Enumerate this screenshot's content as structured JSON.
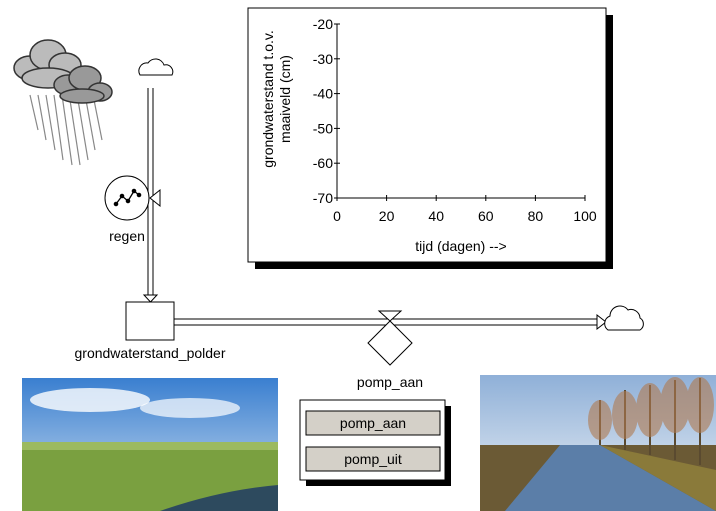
{
  "graph": {
    "type": "line",
    "y_label": [
      "grondwaterstand t.o.v.",
      "maaiveld (cm)"
    ],
    "x_label": "tijd (dagen) -->",
    "xlim": [
      0,
      100
    ],
    "ylim": [
      -70,
      -20
    ],
    "xticks": [
      0,
      20,
      40,
      60,
      80,
      100
    ],
    "yticks": [
      -20,
      -30,
      -40,
      -50,
      -60,
      -70
    ]
  },
  "nodes": {
    "rain": "regen",
    "stock": "grondwaterstand_polder",
    "pump": "pomp_aan"
  },
  "buttons": [
    "pomp_aan",
    "pomp_uit"
  ]
}
